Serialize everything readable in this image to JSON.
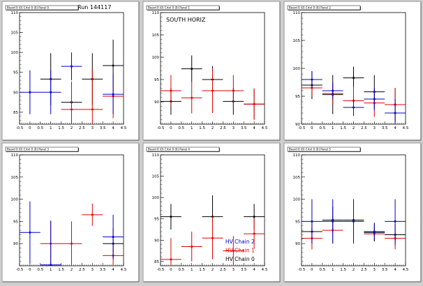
{
  "colors": {
    "black": "#000000",
    "red": "#e00000",
    "blue": "#0000c8"
  },
  "chart_data": [
    {
      "type": "scatter",
      "title": "Board 0 (0) Crtvl 0 (0) Panel 0",
      "annotation": "Run 144117",
      "xlim": [
        -0.5,
        4.5
      ],
      "ylim": [
        82,
        110
      ],
      "xticks": [
        "-0.5",
        "0",
        "0.5",
        "1",
        "1.5",
        "2",
        "2.5",
        "3",
        "3.5",
        "4",
        "4.5"
      ],
      "yticks": [
        "85",
        "90",
        "95",
        "100",
        "105",
        "110"
      ],
      "series": [
        {
          "color": "black",
          "points": [
            {
              "x": 1,
              "y": 93.3,
              "xerr": 0.5,
              "yerr": 6.5
            },
            {
              "x": 2,
              "y": 87.5,
              "xerr": 0.5,
              "yerr": 5.0
            },
            {
              "x": 3,
              "y": 93.3,
              "xerr": 0.5,
              "yerr": 6.5
            },
            {
              "x": 4,
              "y": 96.7,
              "xerr": 0.5,
              "yerr": 6.5
            }
          ]
        },
        {
          "color": "red",
          "points": [
            {
              "x": 2,
              "y": 85.7,
              "xerr": 0.5,
              "yerr": 7.0
            },
            {
              "x": 3,
              "y": 85.7,
              "xerr": 0.5,
              "yerr": 10.0
            },
            {
              "x": 4,
              "y": 89.0,
              "xerr": 0.5,
              "yerr": 5.5
            }
          ]
        },
        {
          "color": "blue",
          "points": [
            {
              "x": 0,
              "y": 90.0,
              "xerr": 0.5,
              "yerr": 5.5
            },
            {
              "x": 1,
              "y": 90.0,
              "xerr": 0.5,
              "yerr": 5.5
            },
            {
              "x": 2,
              "y": 96.5,
              "xerr": 0.5,
              "yerr": 3.5
            },
            {
              "x": 4,
              "y": 89.5,
              "xerr": 0.5,
              "yerr": 5.0
            }
          ]
        }
      ]
    },
    {
      "type": "scatter",
      "title": "Board 0 (0) Crtvl 0 (0) Panel 1",
      "annotation": "SOUTH HORIZ",
      "xlim": [
        -0.5,
        4.5
      ],
      "ylim": [
        85,
        110
      ],
      "xticks": [
        "-0.5",
        "0",
        "0.5",
        "1",
        "1.5",
        "2",
        "2.5",
        "3",
        "3.5",
        "4",
        "4.5"
      ],
      "yticks": [
        "90",
        "95",
        "100",
        "105",
        "110"
      ],
      "series": [
        {
          "color": "black",
          "points": [
            {
              "x": 0,
              "y": 90.1,
              "xerr": 0.5,
              "yerr": 3.0
            },
            {
              "x": 1,
              "y": 97.4,
              "xerr": 0.5,
              "yerr": 3.0
            },
            {
              "x": 2,
              "y": 95.0,
              "xerr": 0.5,
              "yerr": 3.0
            },
            {
              "x": 3,
              "y": 90.1,
              "xerr": 0.5,
              "yerr": 3.0
            },
            {
              "x": 4,
              "y": 89.5,
              "xerr": 0.5,
              "yerr": 3.5
            }
          ]
        },
        {
          "color": "red",
          "points": [
            {
              "x": 0,
              "y": 92.5,
              "xerr": 0.5,
              "yerr": 3.5
            },
            {
              "x": 1,
              "y": 90.9,
              "xerr": 0.5,
              "yerr": 3.5
            },
            {
              "x": 2,
              "y": 92.5,
              "xerr": 0.5,
              "yerr": 5.0
            },
            {
              "x": 3,
              "y": 92.5,
              "xerr": 0.5,
              "yerr": 3.5
            },
            {
              "x": 4,
              "y": 89.5,
              "xerr": 0.5,
              "yerr": 3.5
            }
          ]
        }
      ]
    },
    {
      "type": "scatter",
      "title": "Board 0 (0) Crtvl 0 (0) Panel 2",
      "annotation": "",
      "xlim": [
        -0.5,
        4.5
      ],
      "ylim": [
        90,
        110
      ],
      "xticks": [
        "-0.5",
        "0",
        "0.5",
        "1",
        "1.5",
        "2",
        "2.5",
        "3",
        "3.5",
        "4",
        "4.5"
      ],
      "yticks": [
        "90",
        "95",
        "100",
        "105",
        "110"
      ],
      "series": [
        {
          "color": "black",
          "points": [
            {
              "x": 0,
              "y": 97.0,
              "xerr": 0.5,
              "yerr": 2.5
            },
            {
              "x": 1,
              "y": 95.3,
              "xerr": 0.5,
              "yerr": 3.5
            },
            {
              "x": 2,
              "y": 98.3,
              "xerr": 0.5,
              "yerr": 2.0
            },
            {
              "x": 3,
              "y": 95.8,
              "xerr": 0.5,
              "yerr": 3.0
            },
            {
              "x": 4,
              "y": 93.5,
              "xerr": 0.5,
              "yerr": 3.0
            }
          ]
        },
        {
          "color": "red",
          "points": [
            {
              "x": 0,
              "y": 96.5,
              "xerr": 0.5,
              "yerr": 1.5
            },
            {
              "x": 1,
              "y": 95.5,
              "xerr": 0.5,
              "yerr": 2.0
            },
            {
              "x": 2,
              "y": 94.2,
              "xerr": 0.5,
              "yerr": 2.5
            },
            {
              "x": 3,
              "y": 93.8,
              "xerr": 0.5,
              "yerr": 2.5
            },
            {
              "x": 4,
              "y": 93.5,
              "xerr": 0.5,
              "yerr": 3.0
            }
          ]
        },
        {
          "color": "blue",
          "points": [
            {
              "x": 0,
              "y": 98.0,
              "xerr": 0.5,
              "yerr": 1.5
            },
            {
              "x": 1,
              "y": 96.0,
              "xerr": 0.5,
              "yerr": 1.5
            },
            {
              "x": 2,
              "y": 93.0,
              "xerr": 0.5,
              "yerr": 1.5
            },
            {
              "x": 3,
              "y": 94.5,
              "xerr": 0.5,
              "yerr": 2.0
            },
            {
              "x": 4,
              "y": 92.0,
              "xerr": 0.5,
              "yerr": 2.5
            }
          ]
        }
      ]
    },
    {
      "type": "scatter",
      "title": "Board 0 (0) Crtvl 0 (0) Panel 3",
      "annotation": "",
      "xlim": [
        -0.5,
        4.5
      ],
      "ylim": [
        85,
        110
      ],
      "xticks": [
        "-0.5",
        "0",
        "0.5",
        "1",
        "1.5",
        "2",
        "2.5",
        "3",
        "3.5",
        "4",
        "4.5"
      ],
      "yticks": [
        "90",
        "95",
        "100",
        "105",
        "110"
      ],
      "series": [
        {
          "color": "black",
          "points": [
            {
              "x": 4,
              "y": 90.0,
              "xerr": 0.5,
              "yerr": 3.5
            }
          ]
        },
        {
          "color": "red",
          "points": [
            {
              "x": 1,
              "y": 90.0,
              "xerr": 0.5,
              "yerr": 5.0
            },
            {
              "x": 2,
              "y": 90.0,
              "xerr": 0.5,
              "yerr": 5.0
            },
            {
              "x": 3,
              "y": 96.5,
              "xerr": 0.5,
              "yerr": 2.5
            },
            {
              "x": 4,
              "y": 87.3,
              "xerr": 0.5,
              "yerr": 3.0
            }
          ]
        },
        {
          "color": "blue",
          "points": [
            {
              "x": 0,
              "y": 92.5,
              "xerr": 0.5,
              "yerr": 7.0
            },
            {
              "x": 1,
              "y": 85.2,
              "xerr": 0.5,
              "yerr": 10.0
            },
            {
              "x": 4,
              "y": 91.5,
              "xerr": 0.5,
              "yerr": 5.0
            }
          ]
        }
      ]
    },
    {
      "type": "scatter",
      "title": "Board 0 (0) Crtvl 0 (0) Panel 4",
      "annotation": "",
      "xlim": [
        -0.5,
        4.5
      ],
      "ylim": [
        84,
        110
      ],
      "xticks": [
        "-0.5",
        "0",
        "0.5",
        "1",
        "1.5",
        "2",
        "2.5",
        "3",
        "3.5",
        "4",
        "4.5"
      ],
      "yticks": [
        "85",
        "90",
        "95",
        "100",
        "105",
        "110"
      ],
      "series": [
        {
          "color": "black",
          "name": "HV Chain 0",
          "points": [
            {
              "x": 0,
              "y": 95.5,
              "xerr": 0.5,
              "yerr": 3.0
            },
            {
              "x": 2,
              "y": 95.5,
              "xerr": 0.5,
              "yerr": 5.0
            },
            {
              "x": 4,
              "y": 95.5,
              "xerr": 0.5,
              "yerr": 3.0
            }
          ]
        },
        {
          "color": "red",
          "name": "HV Chain 1",
          "points": [
            {
              "x": 0,
              "y": 85.5,
              "xerr": 0.5,
              "yerr": 5.0
            },
            {
              "x": 1,
              "y": 88.5,
              "xerr": 0.5,
              "yerr": 3.5
            },
            {
              "x": 2,
              "y": 90.5,
              "xerr": 0.5,
              "yerr": 5.0
            },
            {
              "x": 3,
              "y": 87.5,
              "xerr": 0.5,
              "yerr": 3.5
            },
            {
              "x": 4,
              "y": 91.5,
              "xerr": 0.5,
              "yerr": 3.5
            }
          ]
        },
        {
          "color": "blue",
          "name": "HV Chain 2",
          "points": []
        }
      ],
      "legend": "bottom-right"
    },
    {
      "type": "scatter",
      "title": "Board 0 (0) Crtvl 0 (0) Panel 5",
      "annotation": "",
      "xlim": [
        -0.5,
        4.5
      ],
      "ylim": [
        85,
        110
      ],
      "xticks": [
        "-0.5",
        "0",
        "0.5",
        "1",
        "1.5",
        "2",
        "2.5",
        "3",
        "3.5",
        "4",
        "4.5"
      ],
      "yticks": [
        "90",
        "95",
        "100",
        "105",
        "110"
      ],
      "series": [
        {
          "color": "black",
          "points": [
            {
              "x": 0,
              "y": 92.7,
              "xerr": 0.5,
              "yerr": 2.5
            },
            {
              "x": 1,
              "y": 95.3,
              "xerr": 0.5,
              "yerr": 3.0
            },
            {
              "x": 2,
              "y": 95.3,
              "xerr": 0.5,
              "yerr": 3.0
            },
            {
              "x": 3,
              "y": 92.5,
              "xerr": 0.5,
              "yerr": 2.0
            },
            {
              "x": 4,
              "y": 92.0,
              "xerr": 0.5,
              "yerr": 2.5
            }
          ]
        },
        {
          "color": "red",
          "points": [
            {
              "x": 0,
              "y": 91.2,
              "xerr": 0.5,
              "yerr": 2.5
            },
            {
              "x": 1,
              "y": 93.0,
              "xerr": 0.5,
              "yerr": 3.0
            },
            {
              "x": 3,
              "y": 92.2,
              "xerr": 0.5,
              "yerr": 1.5
            },
            {
              "x": 4,
              "y": 91.2,
              "xerr": 0.5,
              "yerr": 2.5
            }
          ]
        },
        {
          "color": "blue",
          "points": [
            {
              "x": 0,
              "y": 95.0,
              "xerr": 0.5,
              "yerr": 5.0
            },
            {
              "x": 1,
              "y": 95.0,
              "xerr": 0.5,
              "yerr": 5.0
            },
            {
              "x": 2,
              "y": 95.0,
              "xerr": 0.5,
              "yerr": 5.0
            },
            {
              "x": 3,
              "y": 92.7,
              "xerr": 0.5,
              "yerr": 2.0
            },
            {
              "x": 4,
              "y": 95.0,
              "xerr": 0.5,
              "yerr": 5.0
            }
          ]
        }
      ]
    }
  ]
}
